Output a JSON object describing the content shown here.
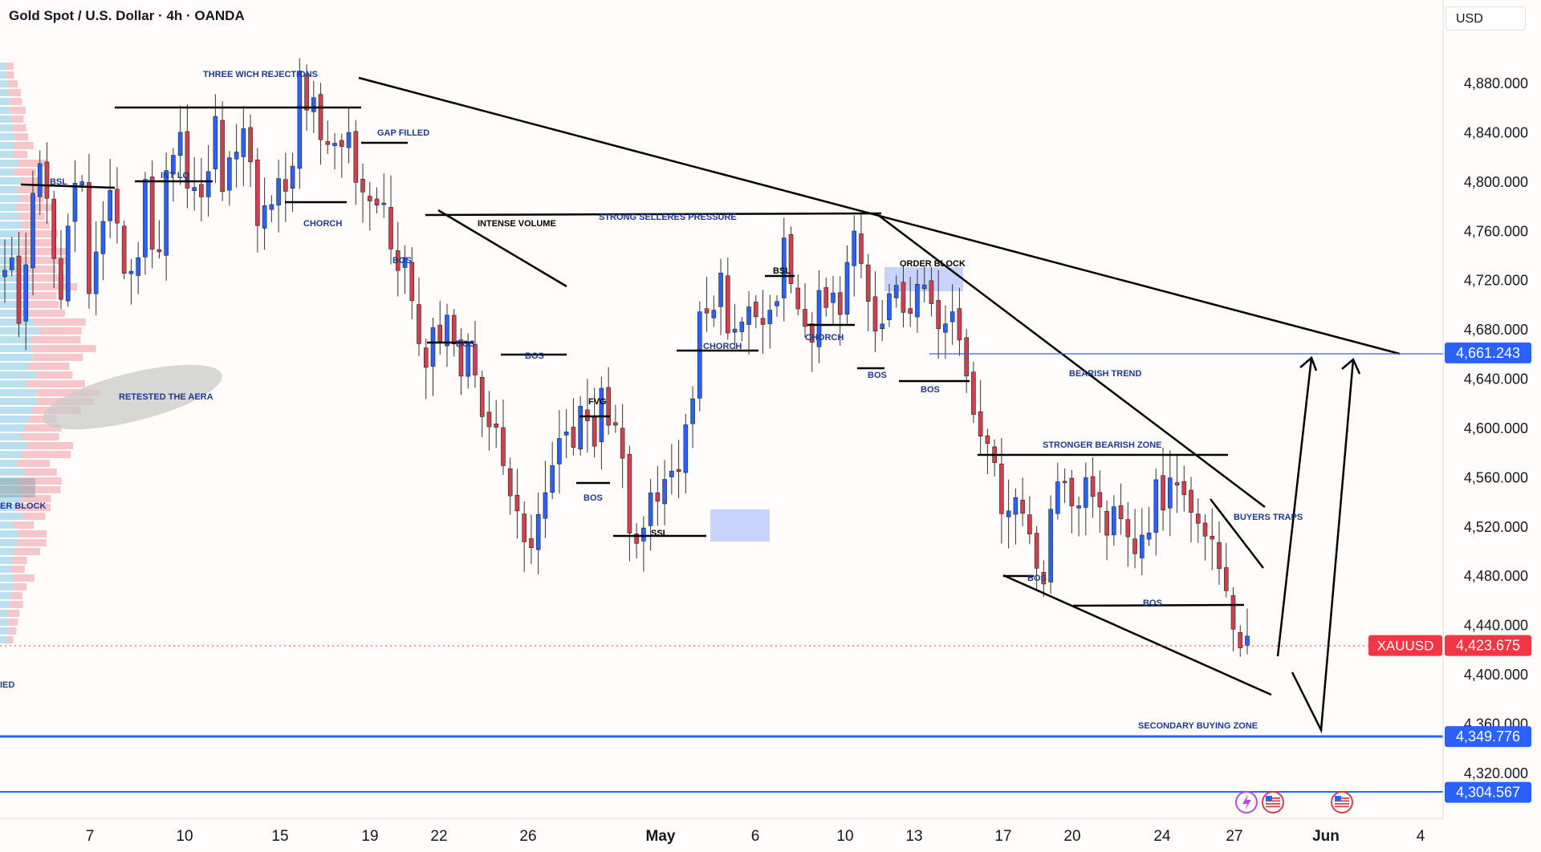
{
  "header": {
    "title": "Gold Spot / U.S. Dollar · 4h · OANDA",
    "currency_button": "USD"
  },
  "chart_data": {
    "type": "candlestick",
    "title": "Gold Spot / U.S. Dollar · 4h · OANDA",
    "symbol": "XAUUSD",
    "ylim": [
      4280,
      4920
    ],
    "y_ticks": [
      "4,880.000",
      "4,840.000",
      "4,800.000",
      "4,760.000",
      "4,720.000",
      "4,680.000",
      "4,640.000",
      "4,600.000",
      "4,560.000",
      "4,520.000",
      "4,480.000",
      "4,440.000",
      "4,400.000",
      "4,360.000",
      "4,320.000"
    ],
    "x_ticks": [
      {
        "label": "7",
        "bold": false
      },
      {
        "label": "10",
        "bold": false
      },
      {
        "label": "15",
        "bold": false
      },
      {
        "label": "19",
        "bold": false
      },
      {
        "label": "22",
        "bold": false
      },
      {
        "label": "26",
        "bold": false
      },
      {
        "label": "May",
        "bold": true
      },
      {
        "label": "6",
        "bold": false
      },
      {
        "label": "10",
        "bold": false
      },
      {
        "label": "13",
        "bold": false
      },
      {
        "label": "17",
        "bold": false
      },
      {
        "label": "20",
        "bold": false
      },
      {
        "label": "24",
        "bold": false
      },
      {
        "label": "27",
        "bold": false
      },
      {
        "label": "Jun",
        "bold": true
      },
      {
        "label": "4",
        "bold": false
      }
    ],
    "price_markers": [
      {
        "value": 4661.243,
        "label": "4,661.243",
        "color": "#2962ff"
      },
      {
        "value": 4349.776,
        "label": "4,349.776",
        "color": "#2962ff"
      },
      {
        "value": 4304.567,
        "label": "4,304.567",
        "color": "#2962ff"
      },
      {
        "value": 4423.675,
        "label": "4,423.675",
        "tag": "XAUUSD",
        "color": "#f23645"
      }
    ],
    "key_path": [
      [
        4720,
        4735,
        4650,
        4790
      ],
      [
        4820,
        4800,
        4720,
        4710
      ],
      [
        4800,
        4820,
        4700,
        4760
      ],
      [
        4770,
        4800,
        4725,
        4730
      ],
      [
        4745,
        4835,
        4685,
        4810
      ],
      [
        4830,
        4840,
        4780,
        4800
      ],
      [
        4795,
        4860,
        4795,
        4820
      ],
      [
        4840,
        4850,
        4760,
        4780
      ],
      [
        4790,
        4820,
        4775,
        4880
      ],
      [
        4870,
        4870,
        4825,
        4825
      ],
      [
        4820,
        4830,
        4790,
        4800
      ],
      [
        4780,
        4790,
        4745,
        4740
      ],
      [
        4720,
        4700,
        4645,
        4690
      ],
      [
        4680,
        4700,
        4615,
        4665
      ],
      [
        4650,
        4615,
        4610,
        4580
      ],
      [
        4560,
        4545,
        4505,
        4510
      ],
      [
        4525,
        4560,
        4605,
        4600
      ],
      [
        4585,
        4625,
        4570,
        4640
      ],
      [
        4605,
        4600,
        4540,
        4510
      ],
      [
        4520,
        4550,
        4545,
        4575
      ],
      [
        4560,
        4600,
        4630,
        4700
      ],
      [
        4690,
        4730,
        4690,
        4690
      ],
      [
        4680,
        4700,
        4690,
        4700
      ],
      [
        4710,
        4750,
        4705,
        4685
      ],
      [
        4660,
        4700,
        4710,
        4700
      ],
      [
        4705,
        4770,
        4730,
        4700
      ],
      [
        4680,
        4700,
        4710,
        4690
      ],
      [
        4700,
        4740,
        4700,
        4680
      ],
      [
        4690,
        4710,
        4650,
        4620
      ],
      [
        4600,
        4580,
        4560,
        4525
      ],
      [
        4520,
        4550,
        4510,
        4490
      ],
      [
        4470,
        4560,
        4545,
        4545
      ],
      [
        4535,
        4575,
        4535,
        4520
      ],
      [
        4530,
        4540,
        4515,
        4500
      ],
      [
        4510,
        4565,
        4520,
        4570
      ],
      [
        4560,
        4555,
        4515,
        4505
      ],
      [
        4510,
        4480,
        4440,
        4430
      ],
      [
        4424
      ]
    ],
    "annotations": [
      "THREE WICH REJECTIONS",
      "GAP FILLED",
      "BSL",
      "INT LQ",
      "CHORCH",
      "BOS",
      "INTENSE VOLUME",
      "STRONG SELLERES PRESSURE",
      "BOS",
      "BOS",
      "RETESTED THE AERA",
      "FVG",
      "BOS",
      "SSL",
      "CHORCH",
      "BSL",
      "CHORCH",
      "BOS",
      "ORDER BLOCK",
      "BOS",
      "BEARISH TREND",
      "STRONGER BEARISH ZONE",
      "BUYERS TRAPS",
      "BOS",
      "BOS",
      "SECONDARY BUYING ZONE",
      "ER BLOCK",
      "IED"
    ],
    "colors": {
      "up": "#2962ff",
      "down": "#d23f4f",
      "marker_blue": "#2962ff",
      "marker_red": "#f23645"
    },
    "grid": false
  }
}
